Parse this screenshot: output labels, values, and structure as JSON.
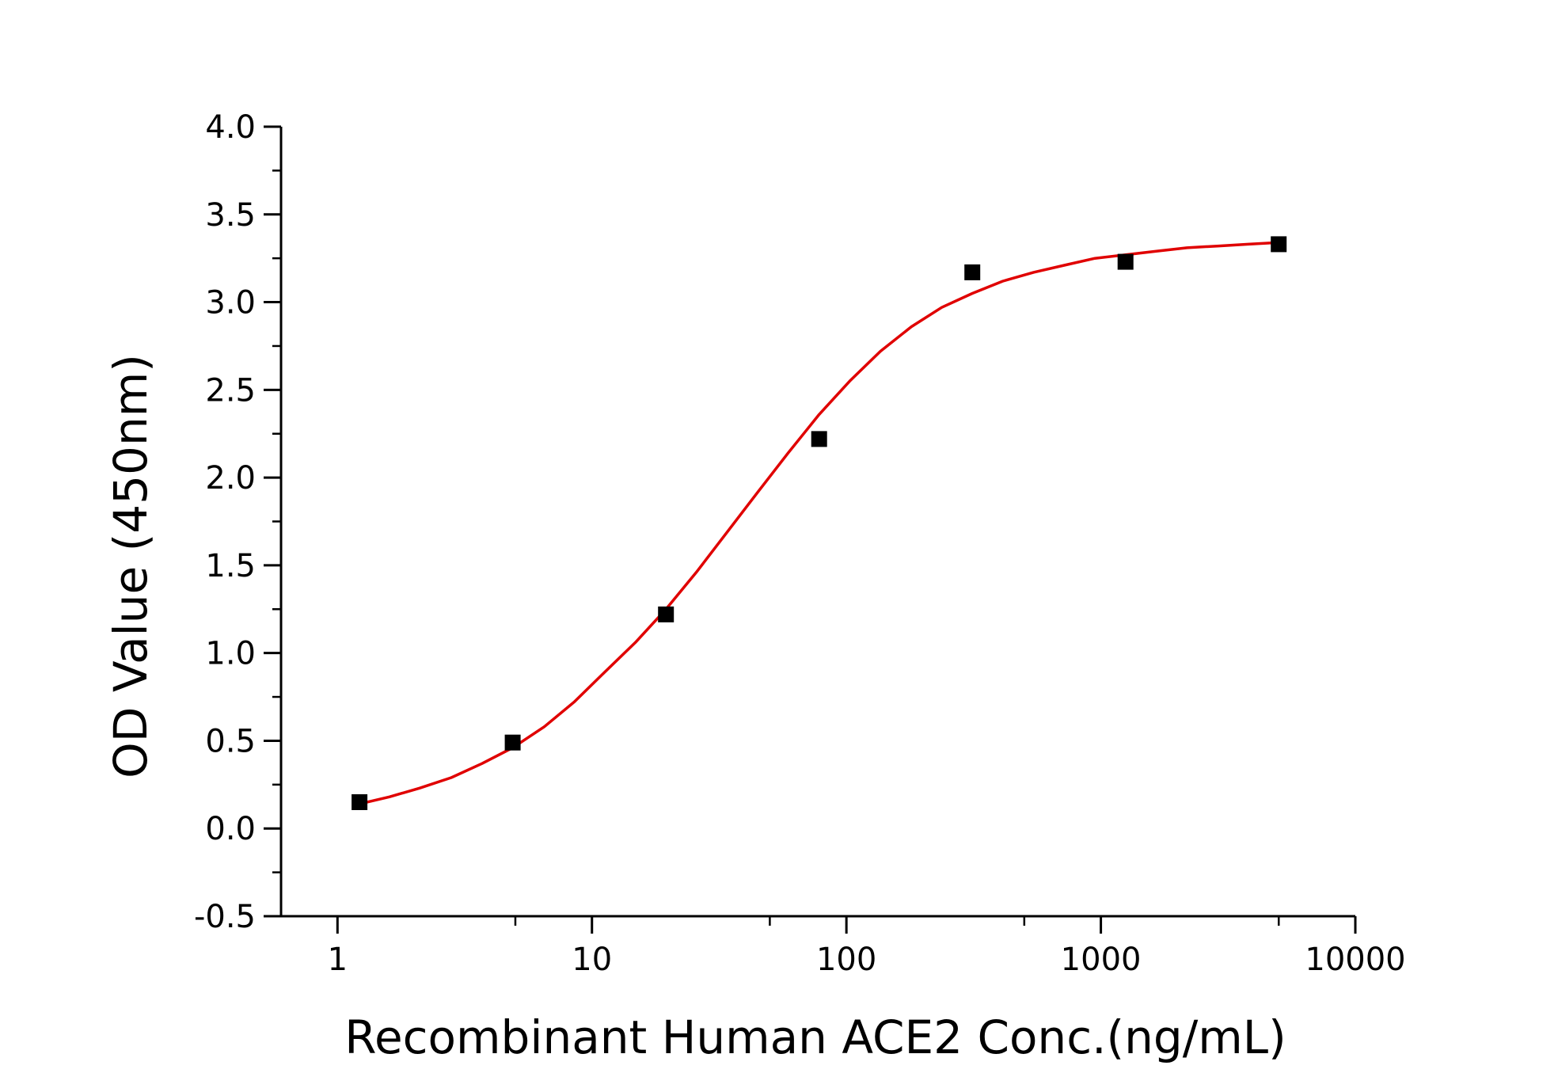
{
  "chart_data": {
    "type": "scatter",
    "title": "",
    "xlabel": "Recombinant Human ACE2 Conc.(ng/mL)",
    "ylabel": "OD Value (450nm)",
    "x_scale": "log",
    "xlim": [
      0.6,
      10000
    ],
    "ylim": [
      -0.5,
      4.0
    ],
    "x_ticks": [
      1,
      10,
      100,
      1000,
      10000
    ],
    "x_tick_labels": [
      "1",
      "10",
      "100",
      "1000",
      "10000"
    ],
    "y_ticks": [
      -0.5,
      0.0,
      0.5,
      1.0,
      1.5,
      2.0,
      2.5,
      3.0,
      3.5,
      4.0
    ],
    "y_tick_labels": [
      "-0.5",
      "0.0",
      "0.5",
      "1.0",
      "1.5",
      "2.0",
      "2.5",
      "3.0",
      "3.5",
      "4.0"
    ],
    "grid": false,
    "legend": "none",
    "series": [
      {
        "type": "scatter",
        "marker": "square",
        "color": "#000000",
        "x": [
          1.22,
          4.88,
          19.53,
          78.13,
          312.5,
          1250,
          5000
        ],
        "y": [
          0.15,
          0.49,
          1.22,
          2.22,
          3.17,
          3.23,
          3.33
        ]
      },
      {
        "type": "line",
        "color": "#e00000",
        "x": [
          1.22,
          1.6,
          2.1,
          2.8,
          3.7,
          4.88,
          6.5,
          8.5,
          11.2,
          14.8,
          19.53,
          25.7,
          34,
          45,
          59,
          78.13,
          103,
          136,
          180,
          237,
          312.5,
          412,
          544,
          718,
          948,
          1250,
          1650,
          2180,
          2870,
          3790,
          5000
        ],
        "y": [
          0.14,
          0.18,
          0.23,
          0.29,
          0.37,
          0.46,
          0.58,
          0.72,
          0.89,
          1.06,
          1.25,
          1.46,
          1.69,
          1.92,
          2.14,
          2.36,
          2.55,
          2.72,
          2.86,
          2.97,
          3.05,
          3.12,
          3.17,
          3.21,
          3.25,
          3.27,
          3.29,
          3.31,
          3.32,
          3.33,
          3.34
        ]
      }
    ]
  }
}
